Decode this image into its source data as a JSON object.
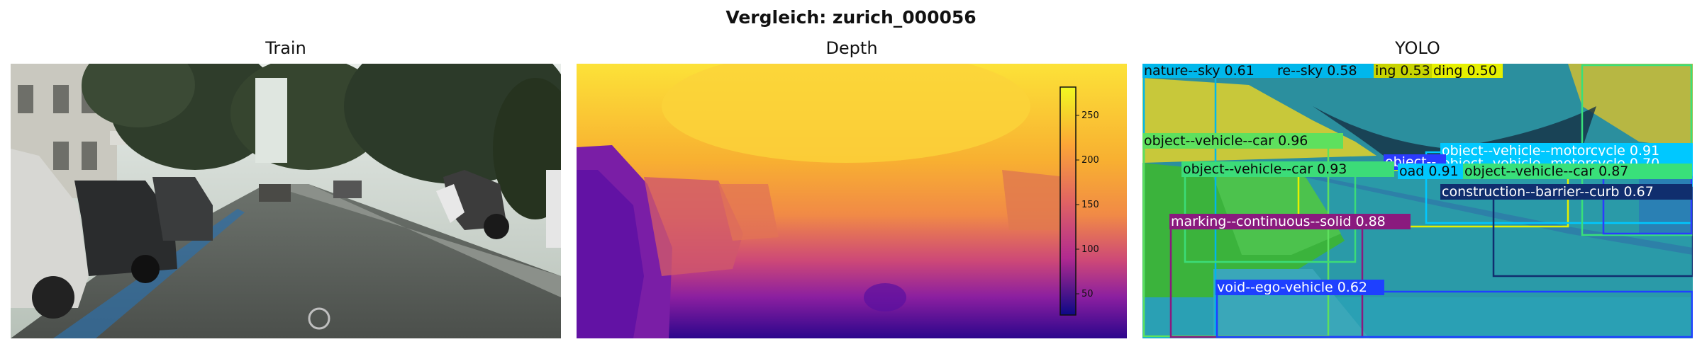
{
  "figure": {
    "title": "Vergleich: zurich_000056"
  },
  "panels": {
    "train": {
      "title": "Train"
    },
    "depth": {
      "title": "Depth",
      "colorbar": {
        "ticks": [
          "250",
          "200",
          "150",
          "100",
          "50"
        ],
        "min": 25,
        "max": 280,
        "colormap": "plasma"
      }
    },
    "yolo": {
      "title": "YOLO",
      "detections": [
        {
          "label": "nature--sky 0.61",
          "color": "#00b7eb"
        },
        {
          "label": "re--sky 0.58",
          "color": "#00b7eb"
        },
        {
          "label": "ing 0.53",
          "color": "#c8d400"
        },
        {
          "label": "ding 0.50",
          "color": "#e6f000"
        },
        {
          "label": "object--vehicle--car 0.96",
          "color": "#5ee05e"
        },
        {
          "label": "object--vehicle--motorcycle 0.91",
          "color": "#00c8ff"
        },
        {
          "label": "object--vehicle--motorcycle 0.70",
          "color": "#00c8ff"
        },
        {
          "label": "object--",
          "color": "#2b3bff"
        },
        {
          "label": "object--vehicle--car 0.93",
          "color": "#3cdc78"
        },
        {
          "label": "oad 0.91",
          "color": "#00c8ff"
        },
        {
          "label": "object--vehicle--car 0.87",
          "color": "#39e07a"
        },
        {
          "label": "construction--barrier--curb 0.67",
          "color": "#102e6e"
        },
        {
          "label": "marking--continuous--solid 0.88",
          "color": "#8a1a7e"
        },
        {
          "label": "void--ego-vehicle 0.62",
          "color": "#1e40ff"
        }
      ]
    }
  }
}
